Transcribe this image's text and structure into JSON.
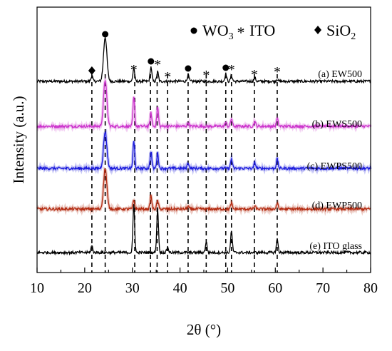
{
  "chart_data": {
    "type": "line",
    "xlabel": "2θ (°)",
    "ylabel": "Intensity (a.u.)",
    "xlim": [
      10,
      80
    ],
    "xticks": [
      "10",
      "20",
      "30",
      "40",
      "50",
      "60",
      "70",
      "80"
    ],
    "y_ticks_shown": false,
    "legend": [
      {
        "symbol": "●",
        "label": "WO",
        "subscript": "3"
      },
      {
        "symbol": "*",
        "label": "ITO",
        "subscript": ""
      },
      {
        "symbol": "◆",
        "label": "SiO",
        "subscript": "2"
      }
    ],
    "reference_lines_2theta": [
      21.5,
      24.3,
      30.5,
      33.8,
      35.2,
      37.4,
      41.7,
      45.5,
      49.6,
      50.8,
      55.6,
      60.4
    ],
    "series": [
      {
        "name": "(a) EW500",
        "color": "#000000",
        "offset": 4,
        "peaks": [
          [
            21.5,
            0.3
          ],
          [
            24.3,
            2.3
          ],
          [
            30.3,
            0.7
          ],
          [
            33.9,
            0.75
          ],
          [
            35.3,
            0.5
          ],
          [
            41.7,
            0.35
          ],
          [
            49.6,
            0.4
          ],
          [
            50.8,
            0.3
          ],
          [
            55.7,
            0.2
          ],
          [
            60.4,
            0.12
          ]
        ]
      },
      {
        "name": "(b) EWS500",
        "color": "#cc33cc",
        "offset": 3,
        "peaks": [
          [
            24.3,
            2.4
          ],
          [
            30.3,
            1.5
          ],
          [
            33.9,
            0.7
          ],
          [
            35.3,
            1.0
          ],
          [
            41.7,
            0.2
          ],
          [
            49.6,
            0.2
          ],
          [
            50.8,
            0.4
          ],
          [
            55.7,
            0.25
          ],
          [
            60.4,
            0.4
          ]
        ]
      },
      {
        "name": "(c) EWPS500",
        "color": "#1a1adc",
        "offset": 2,
        "peaks": [
          [
            24.3,
            1.9
          ],
          [
            30.3,
            1.4
          ],
          [
            33.9,
            0.9
          ],
          [
            35.3,
            0.8
          ],
          [
            41.7,
            0.3
          ],
          [
            50.8,
            0.5
          ],
          [
            55.7,
            0.3
          ],
          [
            60.4,
            0.5
          ]
        ]
      },
      {
        "name": "(d) EWP500",
        "color": "#b32a10",
        "offset": 1,
        "peaks": [
          [
            24.3,
            2.1
          ],
          [
            30.3,
            0.45
          ],
          [
            33.9,
            0.7
          ],
          [
            35.3,
            0.45
          ],
          [
            41.7,
            0.15
          ],
          [
            50.8,
            0.3
          ],
          [
            55.7,
            0.15
          ],
          [
            60.4,
            0.3
          ]
        ]
      },
      {
        "name": "(e) ITO glass",
        "color": "#000000",
        "offset": 0,
        "peaks": [
          [
            21.5,
            0.35
          ],
          [
            30.3,
            2.5
          ],
          [
            35.3,
            2.3
          ],
          [
            37.4,
            0.3
          ],
          [
            45.5,
            0.55
          ],
          [
            50.8,
            1.1
          ],
          [
            60.4,
            0.7
          ]
        ]
      }
    ],
    "annotations": [
      {
        "symbol": "◆",
        "two_theta": 21.5,
        "series": "(a) EW500"
      },
      {
        "symbol": "●",
        "two_theta": 24.3,
        "series": "(a) EW500"
      },
      {
        "symbol": "*",
        "two_theta": 30.3,
        "series": "(a) EW500"
      },
      {
        "symbol": "●",
        "two_theta": 33.9,
        "series": "(a) EW500"
      },
      {
        "symbol": "*",
        "two_theta": 35.3,
        "series": "(a) EW500"
      },
      {
        "symbol": "*",
        "two_theta": 37.4,
        "series": "(a) EW500"
      },
      {
        "symbol": "●",
        "two_theta": 41.7,
        "series": "(a) EW500"
      },
      {
        "symbol": "*",
        "two_theta": 45.5,
        "series": "(a) EW500"
      },
      {
        "symbol": "●",
        "two_theta": 49.6,
        "series": "(a) EW500"
      },
      {
        "symbol": "*",
        "two_theta": 50.8,
        "series": "(a) EW500"
      },
      {
        "symbol": "*",
        "two_theta": 55.6,
        "series": "(a) EW500"
      },
      {
        "symbol": "*",
        "two_theta": 60.4,
        "series": "(a) EW500"
      }
    ]
  }
}
